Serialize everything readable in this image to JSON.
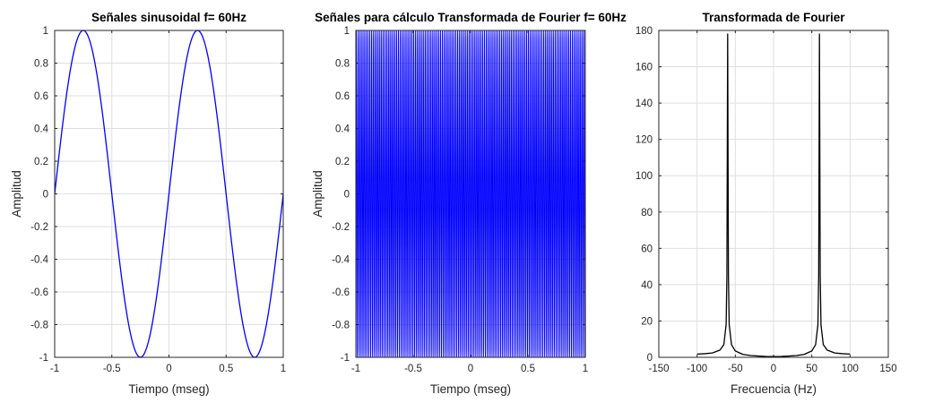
{
  "chart_data": [
    {
      "type": "line",
      "title": "Señales sinusoidal f= 60Hz",
      "xlabel": "Tiempo (mseg)",
      "ylabel": "Amplitud",
      "xlim": [
        -1,
        1
      ],
      "ylim": [
        -1,
        1
      ],
      "grid": true,
      "xticks": [
        "-1",
        "-0.5",
        "0",
        "0.5",
        "1"
      ],
      "yticks": [
        "-1",
        "-0.8",
        "-0.6",
        "-0.4",
        "-0.2",
        "0",
        "0.2",
        "0.4",
        "0.6",
        "0.8",
        "1"
      ],
      "color": "#0000ff",
      "series": [
        {
          "function": "sin",
          "cycles_per_unit": 1,
          "x": [
            -1,
            -0.875,
            -0.75,
            -0.625,
            -0.5,
            -0.375,
            -0.25,
            -0.125,
            0,
            0.125,
            0.25,
            0.375,
            0.5,
            0.625,
            0.75,
            0.875,
            1
          ],
          "y": [
            0,
            0.707,
            1,
            0.707,
            0,
            -0.707,
            -1,
            -0.707,
            0,
            0.707,
            1,
            0.707,
            0,
            -0.707,
            -1,
            -0.707,
            0
          ]
        }
      ]
    },
    {
      "type": "line",
      "title": "Señales para cálculo Transformada de Fourier f= 60Hz",
      "xlabel": "Tiempo (mseg)",
      "ylabel": "Amplitud",
      "xlim": [
        -1,
        1
      ],
      "ylim": [
        -1,
        1
      ],
      "grid": true,
      "xticks": [
        "-1",
        "-0.5",
        "0",
        "0.5",
        "1"
      ],
      "yticks": [
        "-1",
        "-0.8",
        "-0.6",
        "-0.4",
        "-0.2",
        "0",
        "0.2",
        "0.4",
        "0.6",
        "0.8",
        "1"
      ],
      "color": "#0000ff",
      "series": [
        {
          "function": "sin",
          "cycles_per_unit": 60,
          "amplitude": 1
        }
      ]
    },
    {
      "type": "line",
      "title": "Transformada de Fourier",
      "xlabel": "Frecuencia (Hz)",
      "ylabel": "",
      "xlim": [
        -150,
        150
      ],
      "ylim": [
        0,
        180
      ],
      "grid": true,
      "xticks": [
        "-150",
        "-100",
        "-50",
        "0",
        "50",
        "100",
        "150"
      ],
      "yticks": [
        "0",
        "20",
        "40",
        "60",
        "80",
        "100",
        "120",
        "140",
        "160",
        "180"
      ],
      "color": "#000000",
      "series": [
        {
          "x": [
            -100,
            -90,
            -80,
            -70,
            -65,
            -62,
            -61,
            -60,
            -59,
            -58,
            -55,
            -50,
            -40,
            -30,
            -20,
            -10,
            0,
            10,
            20,
            30,
            40,
            50,
            55,
            58,
            59,
            60,
            61,
            62,
            65,
            70,
            80,
            90,
            100
          ],
          "y": [
            1.8,
            2.0,
            2.4,
            4.0,
            7.0,
            18.0,
            45.0,
            178.0,
            45.0,
            18.0,
            7.0,
            3.5,
            1.6,
            1.0,
            0.7,
            0.5,
            0.4,
            0.5,
            0.7,
            1.0,
            1.6,
            3.5,
            7.0,
            18.0,
            45.0,
            178.0,
            45.0,
            18.0,
            7.0,
            4.0,
            2.4,
            2.0,
            1.8
          ]
        }
      ]
    }
  ]
}
